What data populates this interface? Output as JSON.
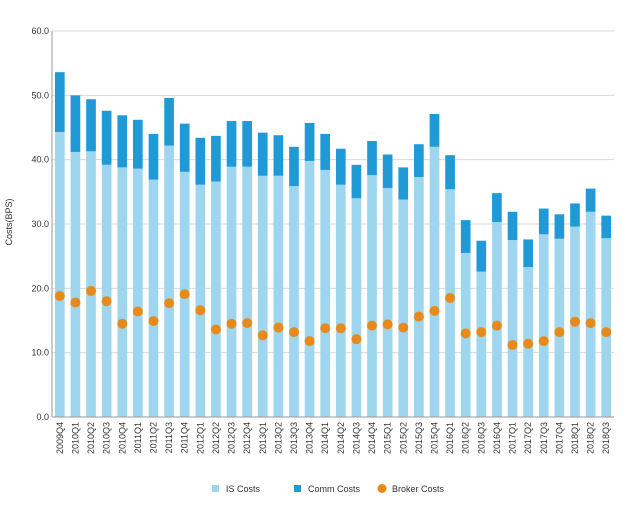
{
  "chart_data": {
    "type": "bar",
    "stacked": true,
    "title": "",
    "xlabel": "",
    "ylabel": "Costs(BPS)",
    "ylim": [
      0,
      60
    ],
    "yticks": [
      "0.0",
      "10.0",
      "20.0",
      "30.0",
      "40.0",
      "50.0",
      "60.0"
    ],
    "grid": true,
    "legend_position": "bottom",
    "colors": {
      "is_costs": "#9dd6ee",
      "comm_costs": "#1f9ad6",
      "broker_costs": "#e88a1a"
    },
    "categories": [
      "2009Q4",
      "2010Q1",
      "2010Q2",
      "2010Q3",
      "2010Q4",
      "2011Q1",
      "2011Q2",
      "2011Q3",
      "2011Q4",
      "2012Q1",
      "2012Q2",
      "2012Q3",
      "2012Q4",
      "2013Q1",
      "2013Q2",
      "2013Q3",
      "2013Q4",
      "2014Q1",
      "2014Q2",
      "2014Q3",
      "2014Q4",
      "2015Q1",
      "2015Q2",
      "2015Q3",
      "2015Q4",
      "2016Q1",
      "2016Q2",
      "2016Q3",
      "2016Q4",
      "2017Q1",
      "2017Q2",
      "2017Q3",
      "2017Q4",
      "2018Q1",
      "2018Q2",
      "2018Q3"
    ],
    "series": [
      {
        "name": "IS Costs",
        "kind": "bar",
        "values": [
          44.3,
          41.2,
          41.3,
          39.2,
          38.8,
          38.6,
          36.9,
          42.2,
          38.1,
          36.1,
          36.6,
          38.9,
          38.9,
          37.5,
          37.5,
          35.9,
          39.8,
          38.4,
          36.1,
          34.0,
          37.6,
          35.6,
          33.8,
          37.3,
          42.0,
          35.4,
          25.5,
          22.6,
          30.3,
          27.5,
          23.3,
          28.4,
          27.7,
          29.6,
          31.9,
          27.8
        ]
      },
      {
        "name": "Comm Costs",
        "kind": "bar",
        "values": [
          9.3,
          8.8,
          8.1,
          8.4,
          8.1,
          7.6,
          7.1,
          7.4,
          7.5,
          7.3,
          7.1,
          7.1,
          7.1,
          6.7,
          6.3,
          6.1,
          5.9,
          5.6,
          5.6,
          5.2,
          5.3,
          5.2,
          5.0,
          5.1,
          5.1,
          5.3,
          5.1,
          4.8,
          4.5,
          4.4,
          4.3,
          4.0,
          3.8,
          3.6,
          3.6,
          3.5
        ]
      },
      {
        "name": "Broker Costs",
        "kind": "scatter",
        "values": [
          18.8,
          17.8,
          19.6,
          18.0,
          14.5,
          16.4,
          14.9,
          17.7,
          19.1,
          16.6,
          13.6,
          14.5,
          14.6,
          12.7,
          13.9,
          13.2,
          11.8,
          13.8,
          13.8,
          12.1,
          14.2,
          14.4,
          13.9,
          15.6,
          16.5,
          18.5,
          13.0,
          13.2,
          14.2,
          11.2,
          11.4,
          11.8,
          13.2,
          14.8,
          14.6,
          13.2
        ]
      }
    ]
  }
}
